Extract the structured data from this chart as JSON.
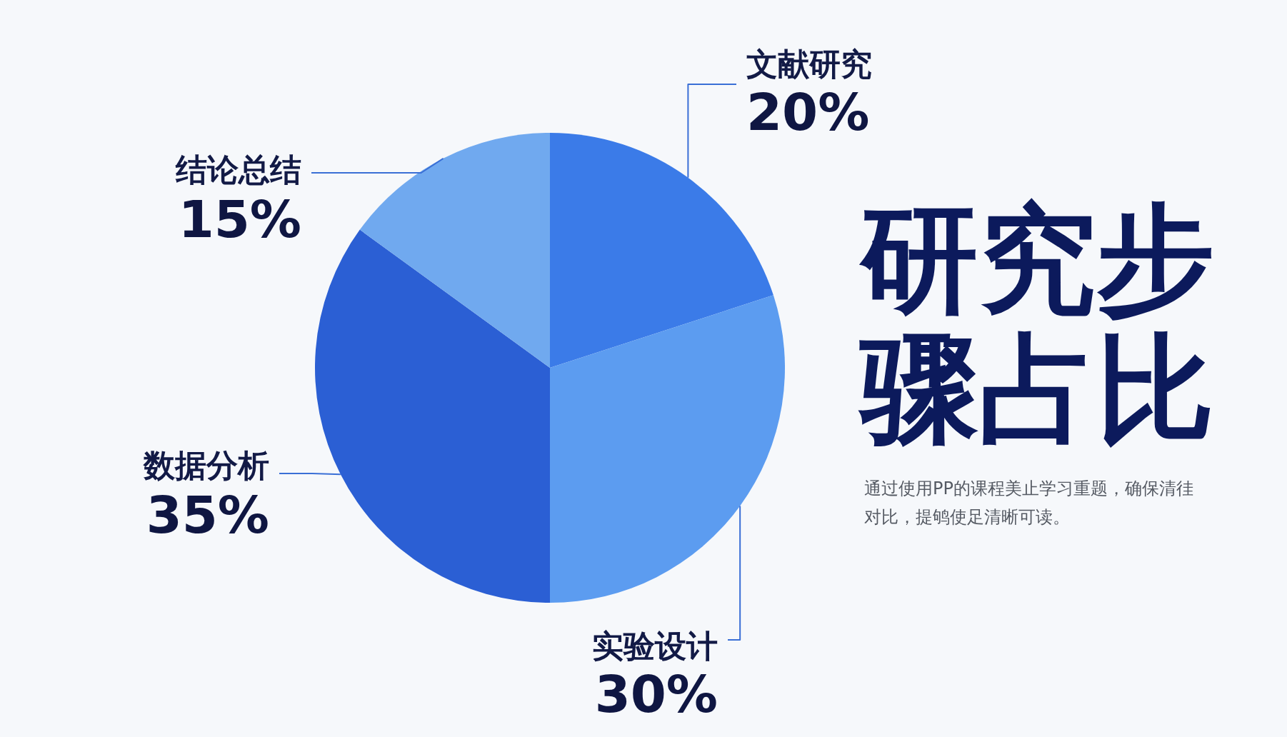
{
  "chart_data": {
    "type": "pie",
    "title": "研究步骤占比",
    "subtitle": "通过使用PP的课程美止学习重题，确保清徍对比，提鸲使足清晰可读。",
    "categories": [
      "文献研究",
      "实验设计",
      "数据分析",
      "结论总结"
    ],
    "values": [
      20,
      30,
      35,
      15
    ],
    "value_labels": [
      "20%",
      "30%",
      "35%",
      "15%"
    ],
    "colors": [
      "#3b7be8",
      "#5c9cf0",
      "#2b5fd4",
      "#70a9ef"
    ]
  }
}
